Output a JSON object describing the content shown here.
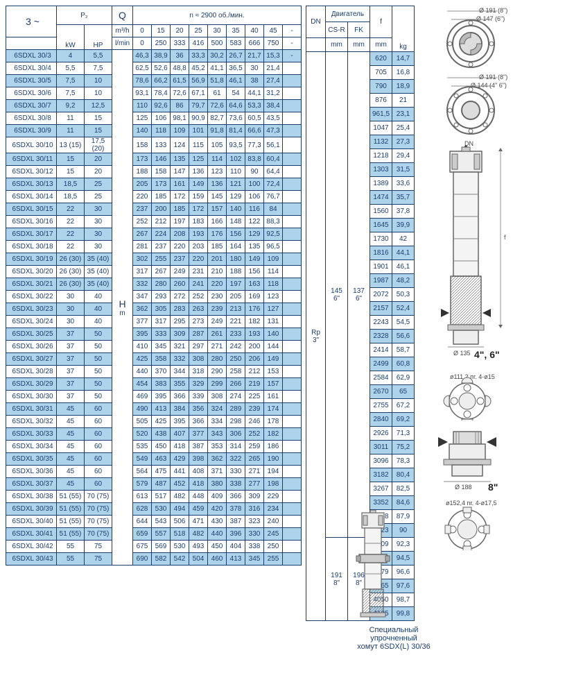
{
  "header": {
    "phase": "3 ~",
    "p2": "P₂",
    "kw": "kW",
    "hp": "HP",
    "q": "Q",
    "q_unit_top": "m³/h",
    "q_unit_bot": "l/min",
    "n_label": "n ≈ 2900 об./мин.",
    "flow_m3h": [
      "0",
      "15",
      "20",
      "25",
      "30",
      "35",
      "40",
      "45",
      "-"
    ],
    "flow_lmin": [
      "0",
      "250",
      "333",
      "416",
      "500",
      "583",
      "666",
      "750",
      "-"
    ],
    "H": "H",
    "H_unit": "m"
  },
  "right_header": {
    "dn": "DN",
    "engine": "Двигатель",
    "csr": "CS-R",
    "fk": "FK",
    "mm": "mm",
    "f": "f",
    "kg": "kg"
  },
  "rows": [
    {
      "m": "6SDXL 30/3",
      "kw": "4",
      "hp": "5,5",
      "v": [
        "46,3",
        "38,9",
        "36",
        "33,3",
        "30,2",
        "26,7",
        "21,7",
        "15,3",
        "-"
      ],
      "f": "620",
      "kg": "14,7"
    },
    {
      "m": "6SDXL 30/4",
      "kw": "5,5",
      "hp": "7,5",
      "v": [
        "62,5",
        "52,6",
        "48,8",
        "45,2",
        "41,1",
        "36,5",
        "30",
        "21,4",
        ""
      ],
      "f": "705",
      "kg": "16,8"
    },
    {
      "m": "6SDXL 30/5",
      "kw": "7,5",
      "hp": "10",
      "v": [
        "78,6",
        "66,2",
        "61,5",
        "56,9",
        "51,8",
        "46,1",
        "38",
        "27,4",
        ""
      ],
      "f": "790",
      "kg": "18,9"
    },
    {
      "m": "6SDXL 30/6",
      "kw": "7,5",
      "hp": "10",
      "v": [
        "93,1",
        "78,4",
        "72,6",
        "67,1",
        "61",
        "54",
        "44,1",
        "31,2",
        ""
      ],
      "f": "876",
      "kg": "21"
    },
    {
      "m": "6SDXL 30/7",
      "kw": "9,2",
      "hp": "12,5",
      "v": [
        "110",
        "92,6",
        "86",
        "79,7",
        "72,6",
        "64,6",
        "53,3",
        "38,4",
        ""
      ],
      "f": "961,5",
      "kg": "23,1"
    },
    {
      "m": "6SDXL 30/8",
      "kw": "11",
      "hp": "15",
      "v": [
        "125",
        "106",
        "98,1",
        "90,9",
        "82,7",
        "73,6",
        "60,5",
        "43,5",
        ""
      ],
      "f": "1047",
      "kg": "25,4"
    },
    {
      "m": "6SDXL 30/9",
      "kw": "11",
      "hp": "15",
      "v": [
        "140",
        "118",
        "109",
        "101",
        "91,8",
        "81,4",
        "66,6",
        "47,3",
        ""
      ],
      "f": "1132",
      "kg": "27,3"
    },
    {
      "m": "6SDXL 30/10",
      "kw": "13 (15)",
      "hp": "17,5 (20)",
      "v": [
        "158",
        "133",
        "124",
        "115",
        "105",
        "93,5",
        "77,3",
        "56,1",
        ""
      ],
      "f": "1218",
      "kg": "29,4"
    },
    {
      "m": "6SDXL 30/11",
      "kw": "15",
      "hp": "20",
      "v": [
        "173",
        "146",
        "135",
        "125",
        "114",
        "102",
        "83,8",
        "60,4",
        ""
      ],
      "f": "1303",
      "kg": "31,5"
    },
    {
      "m": "6SDXL 30/12",
      "kw": "15",
      "hp": "20",
      "v": [
        "188",
        "158",
        "147",
        "136",
        "123",
        "110",
        "90",
        "64,4",
        ""
      ],
      "f": "1389",
      "kg": "33,6"
    },
    {
      "m": "6SDXL 30/13",
      "kw": "18,5",
      "hp": "25",
      "v": [
        "205",
        "173",
        "161",
        "149",
        "136",
        "121",
        "100",
        "72,4",
        ""
      ],
      "f": "1474",
      "kg": "35,7"
    },
    {
      "m": "6SDXL 30/14",
      "kw": "18,5",
      "hp": "25",
      "v": [
        "220",
        "185",
        "172",
        "159",
        "145",
        "129",
        "106",
        "76,7",
        ""
      ],
      "f": "1560",
      "kg": "37,8"
    },
    {
      "m": "6SDXL 30/15",
      "kw": "22",
      "hp": "30",
      "v": [
        "237",
        "200",
        "185",
        "172",
        "157",
        "140",
        "116",
        "84",
        ""
      ],
      "f": "1645",
      "kg": "39,9"
    },
    {
      "m": "6SDXL 30/16",
      "kw": "22",
      "hp": "30",
      "v": [
        "252",
        "212",
        "197",
        "183",
        "166",
        "148",
        "122",
        "88,3",
        ""
      ],
      "f": "1730",
      "kg": "42"
    },
    {
      "m": "6SDXL 30/17",
      "kw": "22",
      "hp": "30",
      "v": [
        "267",
        "224",
        "208",
        "193",
        "176",
        "156",
        "129",
        "92,5",
        ""
      ],
      "f": "1816",
      "kg": "44,1"
    },
    {
      "m": "6SDXL 30/18",
      "kw": "22",
      "hp": "30",
      "v": [
        "281",
        "237",
        "220",
        "203",
        "185",
        "164",
        "135",
        "96,5",
        ""
      ],
      "f": "1901",
      "kg": "46,1"
    },
    {
      "m": "6SDXL 30/19",
      "kw": "26 (30)",
      "hp": "35 (40)",
      "v": [
        "302",
        "255",
        "237",
        "220",
        "201",
        "180",
        "149",
        "109",
        ""
      ],
      "f": "1987",
      "kg": "48,2"
    },
    {
      "m": "6SDXL 30/20",
      "kw": "26 (30)",
      "hp": "35 (40)",
      "v": [
        "317",
        "267",
        "249",
        "231",
        "210",
        "188",
        "156",
        "114",
        ""
      ],
      "f": "2072",
      "kg": "50,3"
    },
    {
      "m": "6SDXL 30/21",
      "kw": "26 (30)",
      "hp": "35 (40)",
      "v": [
        "332",
        "280",
        "260",
        "241",
        "220",
        "197",
        "163",
        "118",
        ""
      ],
      "f": "2157",
      "kg": "52,4"
    },
    {
      "m": "6SDXL 30/22",
      "kw": "30",
      "hp": "40",
      "v": [
        "347",
        "293",
        "272",
        "252",
        "230",
        "205",
        "169",
        "123",
        ""
      ],
      "f": "2243",
      "kg": "54,5"
    },
    {
      "m": "6SDXL 30/23",
      "kw": "30",
      "hp": "40",
      "v": [
        "362",
        "305",
        "283",
        "263",
        "239",
        "213",
        "176",
        "127",
        ""
      ],
      "f": "2328",
      "kg": "56,6"
    },
    {
      "m": "6SDXL 30/24",
      "kw": "30",
      "hp": "40",
      "v": [
        "377",
        "317",
        "295",
        "273",
        "249",
        "221",
        "182",
        "131",
        ""
      ],
      "f": "2414",
      "kg": "58,7"
    },
    {
      "m": "6SDXL 30/25",
      "kw": "37",
      "hp": "50",
      "v": [
        "395",
        "333",
        "309",
        "287",
        "261",
        "233",
        "193",
        "140",
        ""
      ],
      "f": "2499",
      "kg": "60,8"
    },
    {
      "m": "6SDXL 30/26",
      "kw": "37",
      "hp": "50",
      "v": [
        "410",
        "345",
        "321",
        "297",
        "271",
        "242",
        "200",
        "144",
        ""
      ],
      "f": "2584",
      "kg": "62,9"
    },
    {
      "m": "6SDXL 30/27",
      "kw": "37",
      "hp": "50",
      "v": [
        "425",
        "358",
        "332",
        "308",
        "280",
        "250",
        "206",
        "149",
        ""
      ],
      "f": "2670",
      "kg": "65"
    },
    {
      "m": "6SDXL 30/28",
      "kw": "37",
      "hp": "50",
      "v": [
        "440",
        "370",
        "344",
        "318",
        "290",
        "258",
        "212",
        "153",
        ""
      ],
      "f": "2755",
      "kg": "67,2"
    },
    {
      "m": "6SDXL 30/29",
      "kw": "37",
      "hp": "50",
      "v": [
        "454",
        "383",
        "355",
        "329",
        "299",
        "266",
        "219",
        "157",
        ""
      ],
      "f": "2840",
      "kg": "69,2"
    },
    {
      "m": "6SDXL 30/30",
      "kw": "37",
      "hp": "50",
      "v": [
        "469",
        "395",
        "366",
        "339",
        "308",
        "274",
        "225",
        "161",
        ""
      ],
      "f": "2926",
      "kg": "71,3"
    },
    {
      "m": "6SDXL 30/31",
      "kw": "45",
      "hp": "60",
      "v": [
        "490",
        "413",
        "384",
        "356",
        "324",
        "289",
        "239",
        "174",
        ""
      ],
      "f": "3011",
      "kg": "75,2"
    },
    {
      "m": "6SDXL 30/32",
      "kw": "45",
      "hp": "60",
      "v": [
        "505",
        "425",
        "395",
        "366",
        "334",
        "298",
        "246",
        "178",
        ""
      ],
      "f": "3096",
      "kg": "78,3"
    },
    {
      "m": "6SDXL 30/33",
      "kw": "45",
      "hp": "60",
      "v": [
        "520",
        "438",
        "407",
        "377",
        "343",
        "306",
        "252",
        "182",
        ""
      ],
      "f": "3182",
      "kg": "80,4"
    },
    {
      "m": "6SDXL 30/34",
      "kw": "45",
      "hp": "60",
      "v": [
        "535",
        "450",
        "418",
        "387",
        "353",
        "314",
        "259",
        "186",
        ""
      ],
      "f": "3267",
      "kg": "82,5"
    },
    {
      "m": "6SDXL 30/35",
      "kw": "45",
      "hp": "60",
      "v": [
        "549",
        "463",
        "429",
        "398",
        "362",
        "322",
        "265",
        "190",
        ""
      ],
      "f": "3352",
      "kg": "84,6"
    },
    {
      "m": "6SDXL 30/36",
      "kw": "45",
      "hp": "60",
      "v": [
        "564",
        "475",
        "441",
        "408",
        "371",
        "330",
        "271",
        "194",
        ""
      ],
      "f": "3438",
      "kg": "87,9"
    },
    {
      "m": "6SDXL 30/37",
      "kw": "45",
      "hp": "60",
      "v": [
        "579",
        "487",
        "452",
        "418",
        "380",
        "338",
        "277",
        "198",
        ""
      ],
      "f": "3523",
      "kg": "90"
    },
    {
      "m": "6SDXL 30/38",
      "kw": "51 (55)",
      "hp": "70 (75)",
      "v": [
        "613",
        "517",
        "482",
        "448",
        "409",
        "366",
        "309",
        "229",
        ""
      ],
      "f": "3709",
      "kg": "92,3"
    },
    {
      "m": "6SDXL 30/39",
      "kw": "51 (55)",
      "hp": "70 (75)",
      "v": [
        "628",
        "530",
        "494",
        "459",
        "420",
        "378",
        "316",
        "234",
        ""
      ],
      "f": "3794",
      "kg": "94,5"
    },
    {
      "m": "6SDXL 30/40",
      "kw": "51 (55)",
      "hp": "70 (75)",
      "v": [
        "644",
        "543",
        "506",
        "471",
        "430",
        "387",
        "323",
        "240",
        ""
      ],
      "f": "3879",
      "kg": "96,6"
    },
    {
      "m": "6SDXL 30/41",
      "kw": "51 (55)",
      "hp": "70 (75)",
      "v": [
        "659",
        "557",
        "518",
        "482",
        "440",
        "396",
        "330",
        "245",
        ""
      ],
      "f": "3965",
      "kg": "97,6"
    },
    {
      "m": "6SDXL 30/42",
      "kw": "55",
      "hp": "75",
      "v": [
        "675",
        "569",
        "530",
        "493",
        "450",
        "404",
        "338",
        "250",
        ""
      ],
      "f": "4050",
      "kg": "98,7"
    },
    {
      "m": "6SDXL 30/43",
      "kw": "55",
      "hp": "75",
      "v": [
        "690",
        "582",
        "542",
        "504",
        "460",
        "413",
        "345",
        "255",
        ""
      ],
      "f": "4135",
      "kg": "99,8"
    }
  ],
  "dn_groups": [
    {
      "dn": "Rp\n3\"",
      "csr": "145\n6\"",
      "fk": "137\n6\"",
      "span": 35
    },
    {
      "dn": "",
      "csr": "191\n8\"",
      "fk": "196\n8\"",
      "span": 6
    }
  ],
  "diagrams": {
    "circ1_outer": "Ø 191 (8\")",
    "circ1_inner": "Ø 147 (6\")",
    "circ2_outer": "Ø 191 (8\")",
    "circ2_inner": "Ø 144 (4\" 6\")",
    "pump_dn": "DN",
    "pump_f": "f",
    "pump_d135": "Ø 135",
    "pump_size": "4\", 6\"",
    "flange_top": "ø111,2 пг. 4-ø15",
    "motor_d188": "Ø 188",
    "motor_size": "8\"",
    "flange_bot": "ø152,4 пг. 4-ø17,5",
    "caption": "Специальный упрочненный\nхомут 6SDX(L) 30/36"
  }
}
